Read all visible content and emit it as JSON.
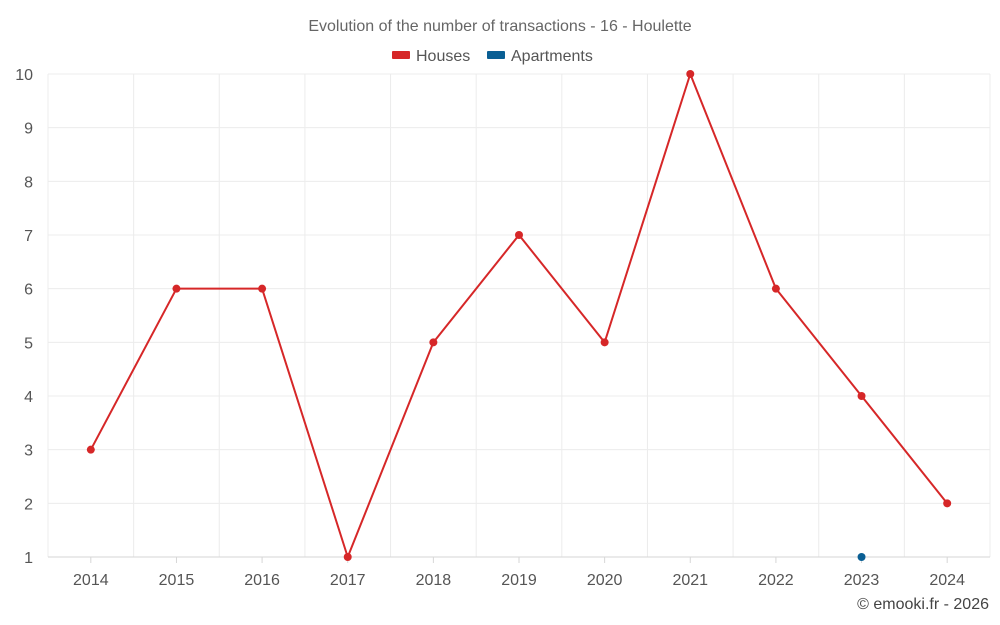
{
  "chart_data": {
    "type": "line",
    "title": "Evolution of the number of transactions - 16 - Houlette",
    "categories": [
      "2014",
      "2015",
      "2016",
      "2017",
      "2018",
      "2019",
      "2020",
      "2021",
      "2022",
      "2023",
      "2024"
    ],
    "y_ticks": [
      1,
      2,
      3,
      4,
      5,
      6,
      7,
      8,
      9,
      10
    ],
    "ylim": [
      1,
      10
    ],
    "grid": true,
    "legend_position": "top-center",
    "series": [
      {
        "name": "Houses",
        "color": "#d62728",
        "values": [
          3,
          6,
          6,
          1,
          5,
          7,
          5,
          10,
          6,
          4,
          2
        ]
      },
      {
        "name": "Apartments",
        "color": "#0a5f94",
        "values": [
          null,
          null,
          null,
          null,
          null,
          null,
          null,
          null,
          null,
          1,
          null
        ]
      }
    ]
  },
  "credit": "© emooki.fr - 2026"
}
